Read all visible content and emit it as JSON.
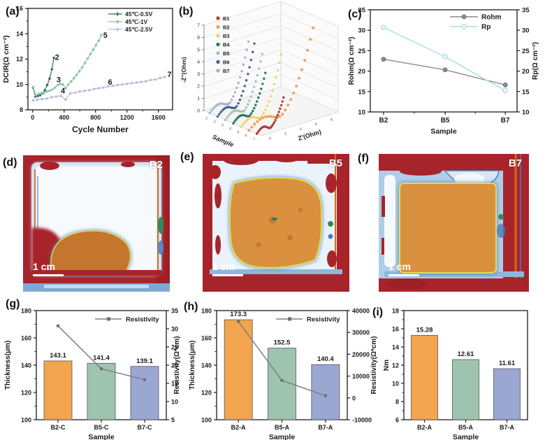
{
  "panel_labels": {
    "a": "(a)",
    "b": "(b)",
    "c": "(c)",
    "d": "(d)",
    "e": "(e)",
    "f": "(f)",
    "g": "(g)",
    "h": "(h)",
    "i": "(i)"
  },
  "thermal_panels": [
    {
      "id": "d",
      "sample": "B2",
      "scalebar": "1 cm"
    },
    {
      "id": "e",
      "sample": "B5",
      "scalebar": "1 cm"
    },
    {
      "id": "f",
      "sample": "B7",
      "scalebar": "1 cm"
    }
  ],
  "chart_data": [
    {
      "id": "a",
      "type": "line",
      "xlabel": "Cycle Number",
      "ylabel": "DCIR(Ω cm⁻²)",
      "xlim": [
        -60,
        1780
      ],
      "ylim": [
        8,
        16
      ],
      "xticks": [
        0,
        400,
        800,
        1200,
        1600
      ],
      "xminor": [
        200,
        600,
        1000,
        1400
      ],
      "yticks": [
        8,
        10,
        12,
        14,
        16
      ],
      "yminor": [
        9,
        11,
        13,
        15
      ],
      "series": [
        {
          "name": "45℃-0.5V",
          "color": "#2F6F63",
          "points": [
            [
              5,
              9.75
            ],
            [
              35,
              9.05
            ],
            [
              65,
              9.1
            ],
            [
              95,
              9.15
            ],
            [
              125,
              9.3
            ],
            [
              155,
              9.55
            ],
            [
              185,
              9.95
            ],
            [
              215,
              10.45
            ],
            [
              245,
              11.2
            ],
            [
              270,
              12.1
            ]
          ]
        },
        {
          "name": "45℃-1V",
          "color": "#8CC4A8",
          "points": [
            [
              5,
              9.8
            ],
            [
              40,
              9.15
            ],
            [
              75,
              9.25
            ],
            [
              110,
              9.3
            ],
            [
              145,
              9.35
            ],
            [
              180,
              9.45
            ],
            [
              215,
              9.5
            ],
            [
              250,
              9.6
            ],
            [
              285,
              9.75
            ],
            [
              320,
              9.95
            ],
            [
              350,
              10.05
            ],
            [
              385,
              10.0
            ],
            [
              420,
              9.7
            ],
            [
              455,
              10.0
            ],
            [
              490,
              10.25
            ],
            [
              525,
              10.5
            ],
            [
              560,
              10.75
            ],
            [
              595,
              11.05
            ],
            [
              630,
              11.35
            ],
            [
              665,
              11.7
            ],
            [
              700,
              12.05
            ],
            [
              735,
              12.4
            ],
            [
              770,
              12.75
            ],
            [
              805,
              13.1
            ],
            [
              840,
              13.45
            ],
            [
              875,
              13.9
            ]
          ]
        },
        {
          "name": "45℃-2.5V",
          "color": "#BDBBD5",
          "points": [
            [
              5,
              8.75
            ],
            [
              60,
              8.8
            ],
            [
              120,
              8.85
            ],
            [
              180,
              8.9
            ],
            [
              240,
              9.0
            ],
            [
              300,
              9.05
            ],
            [
              360,
              9.1
            ],
            [
              420,
              8.8
            ],
            [
              480,
              9.3
            ],
            [
              540,
              9.35
            ],
            [
              600,
              9.45
            ],
            [
              660,
              9.5
            ],
            [
              720,
              9.55
            ],
            [
              780,
              9.65
            ],
            [
              840,
              9.7
            ],
            [
              900,
              9.75
            ],
            [
              960,
              9.85
            ],
            [
              1020,
              9.9
            ],
            [
              1080,
              9.95
            ],
            [
              1140,
              10.0
            ],
            [
              1200,
              10.05
            ],
            [
              1260,
              10.1
            ],
            [
              1320,
              10.15
            ],
            [
              1380,
              10.2
            ],
            [
              1440,
              10.25
            ],
            [
              1500,
              10.35
            ],
            [
              1560,
              10.4
            ],
            [
              1620,
              10.5
            ],
            [
              1680,
              10.6
            ]
          ]
        }
      ],
      "annotations": [
        {
          "text": "2",
          "x": 310,
          "y": 12.1
        },
        {
          "text": "3",
          "x": 330,
          "y": 10.35
        },
        {
          "text": "4",
          "x": 385,
          "y": 9.45
        },
        {
          "text": "5",
          "x": 925,
          "y": 13.85
        },
        {
          "text": "6",
          "x": 985,
          "y": 10.15
        },
        {
          "text": "7",
          "x": 1740,
          "y": 10.75
        }
      ]
    },
    {
      "id": "b",
      "type": "nyquist-3d",
      "zlabel": "-Z''(Ohm)",
      "xlabel": "Z'(Ohm)",
      "ylabel": "Sample",
      "zticks": [
        0,
        1,
        2,
        3,
        4,
        5,
        6,
        7
      ],
      "xticks": [
        0,
        2,
        4,
        6,
        8
      ],
      "sample_ticks": [
        1,
        2,
        3,
        4,
        5,
        6,
        7
      ],
      "series": [
        {
          "name": "B1",
          "color": "#B23B37",
          "tail": 40,
          "spread": 40,
          "bump": 7
        },
        {
          "name": "B2",
          "color": "#EDA256",
          "tail": 118,
          "spread": 96,
          "bump": 12
        },
        {
          "name": "B3",
          "color": "#EFD46B",
          "tail": 86,
          "spread": 60,
          "bump": 9
        },
        {
          "name": "B4",
          "color": "#1F7A65",
          "tail": 58,
          "spread": 48,
          "bump": 8
        },
        {
          "name": "B5",
          "color": "#A3C6B2",
          "tail": 78,
          "spread": 55,
          "bump": 9
        },
        {
          "name": "B6",
          "color": "#3B5F93",
          "tail": 88,
          "spread": 55,
          "bump": 9
        },
        {
          "name": "B7",
          "color": "#A9AECB",
          "tail": 85,
          "spread": 58,
          "bump": 9
        }
      ]
    },
    {
      "id": "c",
      "type": "dual-line",
      "categories": [
        "B2",
        "B5",
        "B7"
      ],
      "xlabel": "Sample",
      "ylabel_left": "Rohm(Ω cm⁻²)",
      "ylabel_right": "Rp(Ω cm⁻²)",
      "ylim": [
        10,
        35
      ],
      "yticks": [
        10,
        15,
        20,
        25,
        30,
        35
      ],
      "series": [
        {
          "name": "Rohm",
          "color": "#8C8C8C",
          "marker": "filled",
          "values": [
            22.9,
            20.3,
            16.6
          ]
        },
        {
          "name": "Rp",
          "color": "#A8DCE6",
          "marker": "open",
          "values": [
            30.7,
            23.5,
            15.2
          ]
        }
      ]
    },
    {
      "id": "g",
      "type": "bar+line",
      "categories": [
        "B2-C",
        "B5-C",
        "B7-C"
      ],
      "xlabel": "Sample",
      "ylabel_left": "Thickness(μm)",
      "ylim_left": [
        100,
        180
      ],
      "yticks_left": [
        100,
        120,
        140,
        160,
        180
      ],
      "yminor_left": [
        110,
        130,
        150,
        170
      ],
      "ylabel_right": "Resistivity(Ω*cm)",
      "ylim_right": [
        5,
        35
      ],
      "yticks_right": [
        5,
        10,
        15,
        20,
        25,
        30,
        35
      ],
      "bars": {
        "values": [
          143.1,
          141.4,
          139.1
        ],
        "labels": [
          "143.1",
          "141.4",
          "139.1"
        ],
        "colors": [
          "#F2A54E",
          "#9EC4AF",
          "#9AA7D2"
        ]
      },
      "line": {
        "name": "Resistivity",
        "color": "#7F7F7F",
        "values": [
          30.8,
          19.0,
          16.0
        ]
      }
    },
    {
      "id": "h",
      "type": "bar+line",
      "categories": [
        "B2-A",
        "B5-A",
        "B7-A"
      ],
      "xlabel": "Sample",
      "ylabel_left": "Thickness(μm)",
      "ylim_left": [
        100,
        180
      ],
      "yticks_left": [
        100,
        120,
        140,
        160,
        180
      ],
      "yminor_left": [
        110,
        130,
        150,
        170
      ],
      "ylabel_right": "Resistivity(Ω*cm)",
      "ylim_right": [
        -10000,
        40000
      ],
      "yticks_right": [
        -10000,
        0,
        10000,
        20000,
        30000,
        40000
      ],
      "bars": {
        "values": [
          173.3,
          152.5,
          140.4
        ],
        "labels": [
          "173.3",
          "152.5",
          "140.4"
        ],
        "colors": [
          "#F2A54E",
          "#9EC4AF",
          "#9AA7D2"
        ]
      },
      "line": {
        "name": "Resistivity",
        "color": "#7F7F7F",
        "values": [
          35000,
          8000,
          1000
        ]
      }
    },
    {
      "id": "i",
      "type": "bar",
      "categories": [
        "B2-A",
        "B5-A",
        "B7-A"
      ],
      "xlabel": "Sample",
      "ylabel_left": "Nm",
      "ylim_left": [
        6,
        18
      ],
      "yticks_left": [
        6,
        8,
        10,
        12,
        14,
        16,
        18
      ],
      "yminor_left": [
        7,
        9,
        11,
        13,
        15,
        17
      ],
      "bars": {
        "values": [
          15.28,
          12.61,
          11.61
        ],
        "labels": [
          "15.28",
          "12.61",
          "11.61"
        ],
        "colors": [
          "#F2A54E",
          "#9EC4AF",
          "#9AA7D2"
        ]
      }
    }
  ]
}
